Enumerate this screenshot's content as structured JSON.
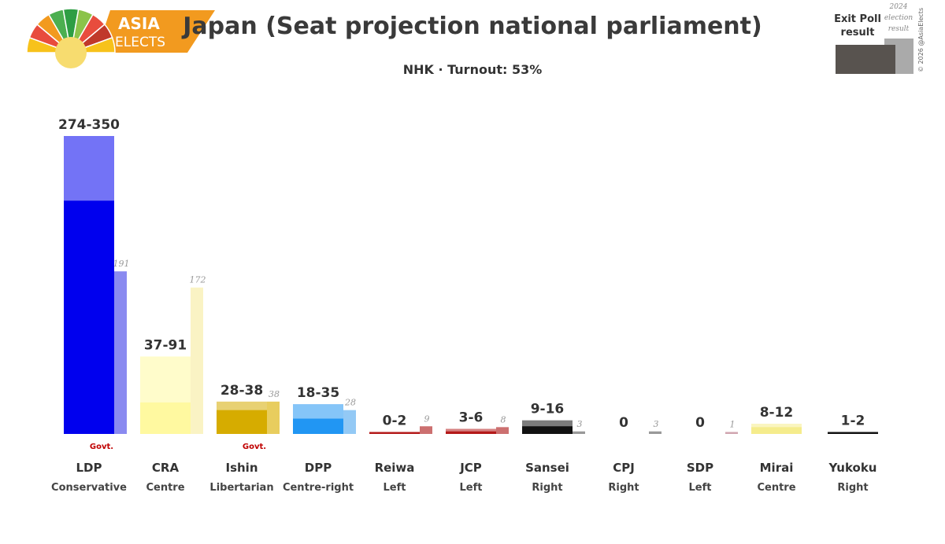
{
  "brand": {
    "line1": "ASIA",
    "line2": "ELECTS"
  },
  "title": "Japan (Seat projection national parliament)",
  "subtitle": "NHK · Turnout: 53%",
  "legend": {
    "exit_poll_line1": "Exit Poll",
    "exit_poll_line2": "result",
    "prev_line1": "2024",
    "prev_line2": "election",
    "prev_line3": "result",
    "exit_poll_color": "#58534f",
    "prev_color": "#aaaaaa"
  },
  "copyright": "© 2026 @AsiaElects",
  "govt_label": "Govt.",
  "chart_data": {
    "type": "bar",
    "title": "Japan (Seat projection national parliament)",
    "subtitle": "NHK · Turnout: 53%",
    "categories": [
      "LDP",
      "CRA",
      "Ishin",
      "DPP",
      "Reiwa",
      "JCP",
      "Sansei",
      "CPJ",
      "SDP",
      "Mirai",
      "Yukoku"
    ],
    "ideology": [
      "Conservative",
      "Centre",
      "Libertarian",
      "Centre-right",
      "Left",
      "Left",
      "Right",
      "Right",
      "Left",
      "Centre",
      "Right"
    ],
    "series": [
      {
        "name": "Exit Poll result",
        "range_labels": [
          "274-350",
          "37-91",
          "28-38",
          "18-35",
          "0-2",
          "3-6",
          "9-16",
          "0",
          "0",
          "8-12",
          "1-2"
        ],
        "low": [
          274,
          37,
          28,
          18,
          0,
          3,
          9,
          0,
          0,
          8,
          1
        ],
        "high": [
          350,
          91,
          38,
          35,
          2,
          6,
          16,
          0,
          0,
          12,
          2
        ]
      },
      {
        "name": "2024 election result",
        "values": [
          191,
          172,
          38,
          28,
          9,
          8,
          3,
          3,
          1,
          null,
          null
        ]
      }
    ],
    "government": [
      true,
      false,
      true,
      false,
      false,
      false,
      false,
      false,
      false,
      false,
      false
    ],
    "colors": {
      "main": [
        "#0000ee",
        "#fff9a0",
        "#d6ac00",
        "#2196f3",
        "#b41a1a",
        "#b41a1a",
        "#111111",
        "#888888",
        "#cc8899",
        "#f5ec8c",
        "#111111"
      ],
      "prev": [
        "#8a8af0",
        "#faf3c4",
        "#e8cd5e",
        "#93c9f5",
        "#cc7070",
        "#cc7070",
        "#999999",
        "#999999",
        "#d0a5b0",
        "#f7ef9e",
        "#bbbbbb"
      ]
    }
  }
}
